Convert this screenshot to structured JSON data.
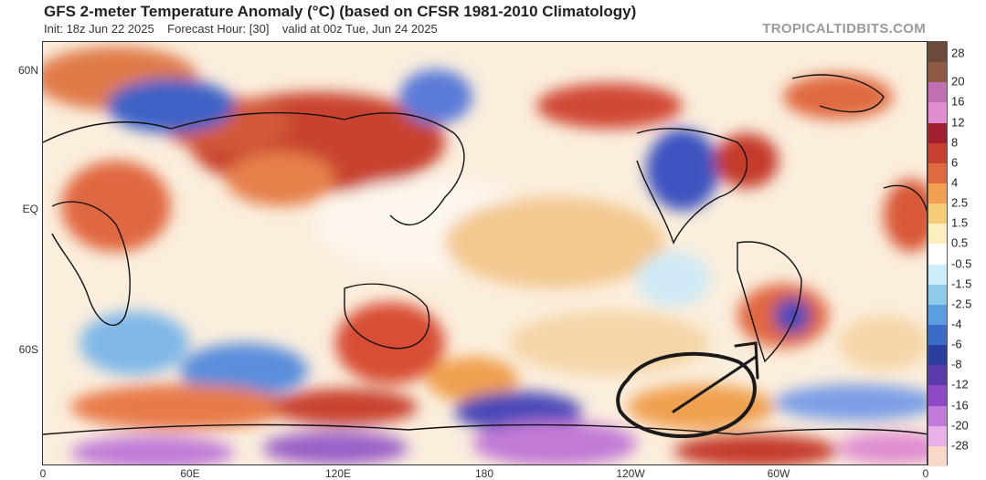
{
  "header": {
    "title": "GFS 2-meter Temperature Anomaly (°C) (based on CFSR 1981-2010 Climatology)",
    "init": "Init: 18z Jun 22 2025",
    "forecast_hour": "Forecast Hour: [30]",
    "valid": "valid at 00z Tue, Jun 24 2025",
    "brand": "TROPICALTIDBITS.COM"
  },
  "axes": {
    "lat_labels": [
      "60N",
      "EQ",
      "60S"
    ],
    "lon_labels": [
      "0",
      "60E",
      "120E",
      "180",
      "120W",
      "60W",
      "0"
    ]
  },
  "colorbar": {
    "labels": [
      "28",
      "20",
      "16",
      "12",
      "8",
      "6",
      "4",
      "2.5",
      "1.5",
      "0.5",
      "-0.5",
      "-1.5",
      "-2.5",
      "-4",
      "-6",
      "-8",
      "-12",
      "-16",
      "-20",
      "-28"
    ],
    "colors": [
      "#6b4a3a",
      "#8e5a44",
      "#c070b0",
      "#e08ed0",
      "#a02030",
      "#c84030",
      "#e06a40",
      "#f0a050",
      "#f6cc78",
      "#fbefc0",
      "#ffffff",
      "#cdeef8",
      "#8ecbe8",
      "#5a9ee0",
      "#3a6cc8",
      "#2a3e9e",
      "#5a3aa8",
      "#8e4ac4",
      "#c07ad8",
      "#e8b0e8",
      "#f8d8c8"
    ]
  },
  "map": {
    "annotation": "hand-drawn circle with arrow near 120W-90W, 60S",
    "palette": {
      "warm": "#e0683f",
      "hot": "#b82f2a",
      "cool": "#3f6fcf",
      "cold": "#4a3aa8",
      "mild": "#f3c07a",
      "purple": "#c06ac8",
      "neutral": "#ffffff",
      "land_line": "#111111"
    }
  }
}
